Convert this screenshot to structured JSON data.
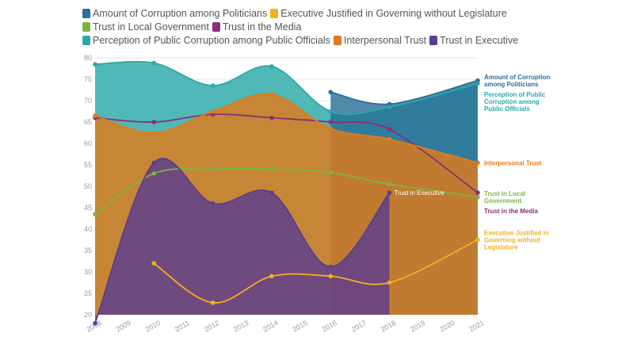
{
  "chart_data": {
    "type": "area",
    "ylim": [
      20,
      80
    ],
    "yticks": [
      20,
      25,
      30,
      35,
      40,
      45,
      50,
      55,
      60,
      65,
      70,
      75,
      80
    ],
    "xticks": [
      "2008",
      "2009",
      "2010",
      "2011",
      "2012",
      "2013",
      "2014",
      "2015",
      "2016",
      "2017",
      "2018",
      "2019",
      "2020",
      "2021"
    ],
    "xlim": [
      2008,
      2021
    ],
    "grid": true,
    "legend_position": "top",
    "series": [
      {
        "name": "Amount of Corruption among Politicians",
        "color": "#2a6f97",
        "x": [
          2016,
          2018,
          2021
        ],
        "y": [
          72,
          69.2,
          74.7
        ],
        "end_label": "Amount of Corruption among Politicians"
      },
      {
        "name": "Executive Justified in Governing without Legislature",
        "color": "#f2b01e",
        "x": [
          2010,
          2012,
          2014,
          2016,
          2018,
          2021
        ],
        "y": [
          32,
          22.8,
          29,
          29,
          27.5,
          37.5
        ],
        "end_label": "Executive Justified in Governing without Legislature"
      },
      {
        "name": "Trust in Local Government",
        "color": "#7cb342",
        "x": [
          2008,
          2010,
          2012,
          2014,
          2016,
          2018,
          2021
        ],
        "y": [
          43.5,
          53,
          54,
          54,
          53.2,
          50.5,
          47.5
        ],
        "end_label": "Trust in Local Government"
      },
      {
        "name": "Trust in the Media",
        "color": "#8e2d7a",
        "x": [
          2008,
          2010,
          2012,
          2014,
          2016,
          2018,
          2021
        ],
        "y": [
          66,
          65,
          66.8,
          66,
          65,
          63.3,
          48.5
        ],
        "end_label": "Trust in the Media"
      },
      {
        "name": "Perception of Public Corruption among Public Officials",
        "color": "#2ba8a8",
        "x": [
          2008,
          2010,
          2012,
          2014,
          2016,
          2018,
          2021
        ],
        "y": [
          78.5,
          78.8,
          73.5,
          78,
          67.5,
          68.5,
          74
        ],
        "end_label": "Perception of Public Corruption among Public Officials"
      },
      {
        "name": "Interpersonal Trust",
        "color": "#e07b1a",
        "x": [
          2008,
          2010,
          2012,
          2014,
          2016,
          2018,
          2021
        ],
        "y": [
          66.5,
          62.5,
          67.5,
          71.5,
          63.5,
          61,
          55.5
        ],
        "end_label": "Interpersonal Trust"
      },
      {
        "name": "Trust in Executive",
        "color": "#5b3d8f",
        "x": [
          2008,
          2010,
          2012,
          2014,
          2016,
          2018
        ],
        "y": [
          18,
          55.5,
          46,
          48.5,
          31.2,
          48.5
        ],
        "end_label": "Trust in Executive"
      }
    ]
  }
}
